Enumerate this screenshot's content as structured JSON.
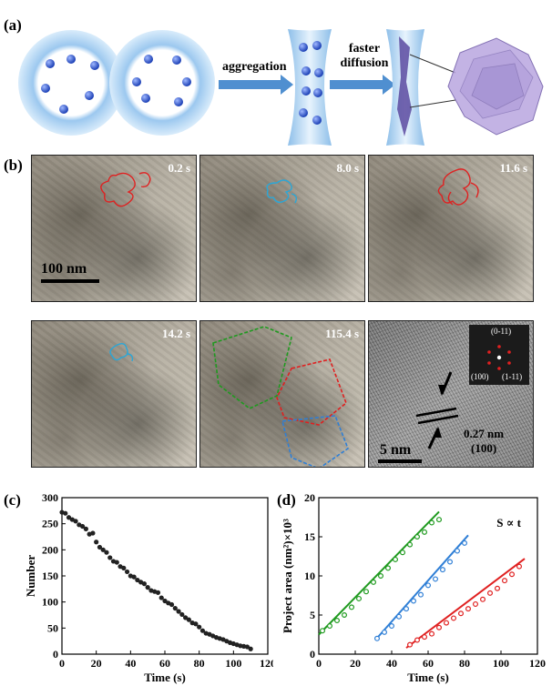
{
  "panel_labels": {
    "a": "(a)",
    "b": "(b)",
    "c": "(c)",
    "d": "(d)"
  },
  "schematic": {
    "arrow1_label": "aggregation",
    "arrow2_label_line1": "faster",
    "arrow2_label_line2": "diffusion"
  },
  "tem_frames": [
    {
      "time": "0.2 s"
    },
    {
      "time": "8.0 s"
    },
    {
      "time": "11.6 s"
    },
    {
      "time": "14.2 s"
    },
    {
      "time": "115.4 s"
    }
  ],
  "scale_bar_low": "100 nm",
  "hrtem": {
    "scale_bar": "5 nm",
    "d_spacing": "0.27 nm",
    "plane": "(100)",
    "fft_labels": {
      "top": "(0-11)",
      "left": "(100)",
      "right": "(1-11)"
    }
  },
  "colors": {
    "red": "#e02020",
    "cyan": "#2aa7d8",
    "green": "#1f9a1f",
    "blue": "#2f7fd6",
    "dots": "#222222"
  },
  "chart_data": [
    {
      "type": "scatter",
      "xlabel": "Time (s)",
      "ylabel": "Number",
      "xlim": [
        0,
        120
      ],
      "ylim": [
        0,
        300
      ],
      "xticks": [
        0,
        20,
        40,
        60,
        80,
        100,
        120
      ],
      "yticks": [
        0,
        50,
        100,
        150,
        200,
        250,
        300
      ],
      "x": [
        0,
        2,
        4,
        6,
        8,
        10,
        12,
        14,
        16,
        18,
        20,
        22,
        24,
        26,
        28,
        30,
        32,
        34,
        36,
        38,
        40,
        42,
        44,
        46,
        48,
        50,
        52,
        54,
        56,
        58,
        60,
        62,
        64,
        66,
        68,
        70,
        72,
        74,
        76,
        78,
        80,
        82,
        84,
        86,
        88,
        90,
        92,
        94,
        96,
        98,
        100,
        102,
        104,
        106,
        108,
        110
      ],
      "y": [
        272,
        270,
        262,
        258,
        255,
        248,
        245,
        240,
        230,
        232,
        215,
        205,
        200,
        195,
        185,
        178,
        176,
        168,
        165,
        158,
        150,
        148,
        142,
        138,
        135,
        128,
        122,
        120,
        118,
        108,
        102,
        98,
        95,
        88,
        82,
        76,
        70,
        66,
        60,
        58,
        52,
        45,
        40,
        38,
        35,
        32,
        30,
        28,
        25,
        22,
        20,
        18,
        16,
        15,
        14,
        10
      ]
    },
    {
      "type": "scatter",
      "xlabel": "Time (s)",
      "ylabel": "Project area (nm²)×10³",
      "annotation": "S ∝ t",
      "xlim": [
        0,
        120
      ],
      "ylim": [
        0,
        20
      ],
      "xticks": [
        0,
        20,
        40,
        60,
        80,
        100,
        120
      ],
      "yticks": [
        0,
        5,
        10,
        15,
        20
      ],
      "series": [
        {
          "color": "#1f9a1f",
          "x": [
            2,
            6,
            10,
            14,
            18,
            22,
            26,
            30,
            34,
            38,
            42,
            46,
            50,
            54,
            58,
            62,
            66
          ],
          "y": [
            3.0,
            3.6,
            4.3,
            5.0,
            6.0,
            7.1,
            8.0,
            9.2,
            10.0,
            11.0,
            12.1,
            13.0,
            14.0,
            15.0,
            15.6,
            16.8,
            17.2
          ],
          "fit": [
            [
              0,
              2.5
            ],
            [
              66,
              18.2
            ]
          ]
        },
        {
          "color": "#2f7fd6",
          "x": [
            32,
            36,
            40,
            44,
            48,
            52,
            56,
            60,
            64,
            68,
            72,
            76,
            80
          ],
          "y": [
            2.0,
            2.8,
            3.6,
            4.8,
            5.8,
            6.8,
            7.6,
            8.8,
            9.6,
            10.8,
            11.8,
            13.2,
            14.2
          ],
          "fit": [
            [
              31,
              1.8
            ],
            [
              82,
              15.2
            ]
          ]
        },
        {
          "color": "#e02020",
          "x": [
            50,
            54,
            58,
            62,
            66,
            70,
            74,
            78,
            82,
            86,
            90,
            94,
            98,
            102,
            106,
            110
          ],
          "y": [
            1.2,
            1.8,
            2.2,
            2.6,
            3.4,
            4.0,
            4.6,
            5.2,
            5.8,
            6.4,
            7.0,
            7.8,
            8.4,
            9.4,
            10.2,
            11.2
          ],
          "fit": [
            [
              48,
              0.8
            ],
            [
              113,
              12.2
            ]
          ]
        }
      ]
    }
  ]
}
